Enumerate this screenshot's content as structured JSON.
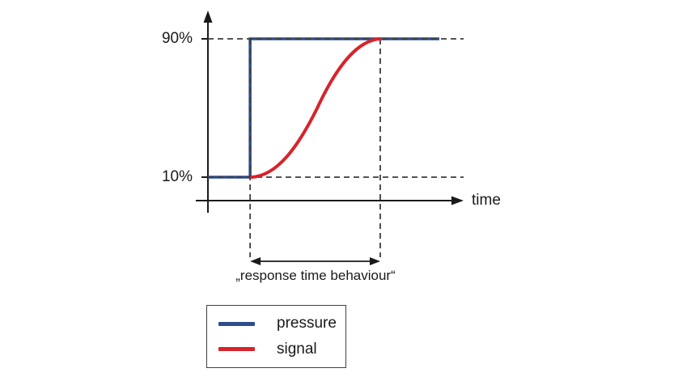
{
  "figure": {
    "background": "#ffffff",
    "annotation": "„response time behaviour“"
  },
  "chart_data": {
    "type": "line",
    "title": "",
    "xlabel": "time",
    "ylabel": "",
    "y_tick_labels": [
      "90%",
      "10%"
    ],
    "y_levels": [
      10,
      90
    ],
    "x_axis": {
      "label": "time",
      "ticks_shown": false,
      "range_relative": [
        0,
        1
      ]
    },
    "grid": "dashed reference lines at 10% and 90% plus vertical dashed markers bounding the response interval",
    "legend_position": "below-chart-boxed",
    "t_step": 0.165,
    "t_signal_reaches_90": 0.674,
    "t_pressure_line_end": 0.905,
    "series": [
      {
        "name": "pressure",
        "type": "step",
        "color": "#2e4d8e",
        "description": "instantaneous step from 10% to 90% at t_step, then constant at 90%",
        "points_relative": [
          [
            0,
            10
          ],
          [
            0.165,
            10
          ],
          [
            0.165,
            90
          ],
          [
            0.905,
            90
          ]
        ]
      },
      {
        "name": "signal",
        "type": "sigmoid",
        "color": "#d8232a",
        "description": "S-shaped rise from 10% at t_step to 90% at t_signal_reaches_90",
        "points_relative": [
          [
            0.165,
            10
          ],
          [
            0.674,
            90
          ]
        ]
      }
    ],
    "annotation": "„response time behaviour“",
    "annotation_interval_relative": [
      0.165,
      0.674
    ]
  },
  "axis_labels": {
    "y90": "90%",
    "y10": "10%",
    "x": "time"
  },
  "legend": {
    "items": [
      {
        "label": "pressure",
        "color": "#2e4d8e"
      },
      {
        "label": "signal",
        "color": "#d8232a"
      }
    ]
  },
  "colors": {
    "pressure_blue": "#2e4d8e",
    "signal_red": "#d8232a",
    "dashed_line": "#3d3d3d",
    "axis_black": "#1a1a1a"
  }
}
